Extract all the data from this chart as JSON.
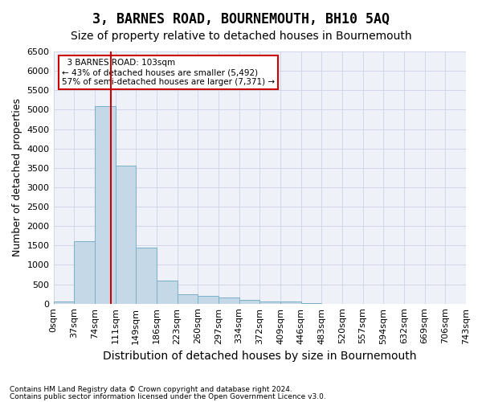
{
  "title": "3, BARNES ROAD, BOURNEMOUTH, BH10 5AQ",
  "subtitle": "Size of property relative to detached houses in Bournemouth",
  "xlabel": "Distribution of detached houses by size in Bournemouth",
  "ylabel": "Number of detached properties",
  "footnote1": "Contains HM Land Registry data © Crown copyright and database right 2024.",
  "footnote2": "Contains public sector information licensed under the Open Government Licence v3.0.",
  "bin_labels": [
    "0sqm",
    "37sqm",
    "74sqm",
    "111sqm",
    "149sqm",
    "186sqm",
    "223sqm",
    "260sqm",
    "297sqm",
    "334sqm",
    "372sqm",
    "409sqm",
    "446sqm",
    "483sqm",
    "520sqm",
    "557sqm",
    "594sqm",
    "632sqm",
    "669sqm",
    "706sqm",
    "743sqm"
  ],
  "bar_values": [
    50,
    1600,
    5100,
    3550,
    1450,
    600,
    250,
    200,
    150,
    100,
    50,
    50,
    10,
    0,
    0,
    0,
    0,
    0,
    0,
    0
  ],
  "bar_color": "#c5d8e8",
  "bar_edge_color": "#7aafc8",
  "vline_color": "#cc0000",
  "annotation_text": "  3 BARNES ROAD: 103sqm\n← 43% of detached houses are smaller (5,492)\n57% of semi-detached houses are larger (7,371) →",
  "annotation_box_color": "#cc0000",
  "ylim": [
    0,
    6500
  ],
  "yticks": [
    0,
    500,
    1000,
    1500,
    2000,
    2500,
    3000,
    3500,
    4000,
    4500,
    5000,
    5500,
    6000,
    6500
  ],
  "grid_color": "#d0d8e8",
  "bg_color": "#eef2f8",
  "title_fontsize": 12,
  "subtitle_fontsize": 10,
  "axis_fontsize": 9,
  "tick_fontsize": 8
}
